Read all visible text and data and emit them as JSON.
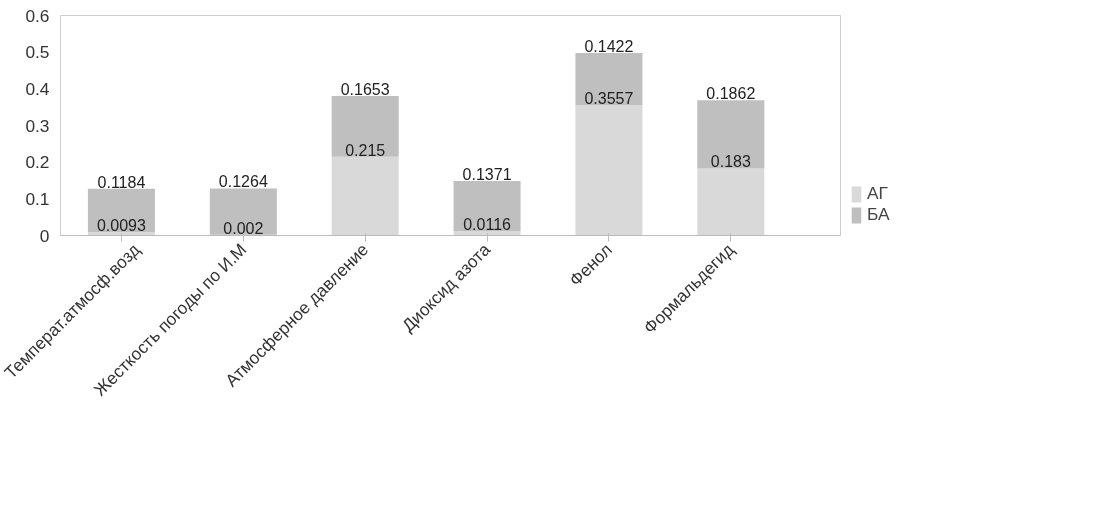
{
  "chart_data": {
    "type": "bar",
    "stacked": true,
    "data_labels": true,
    "legend": "right",
    "grid": false,
    "categories": [
      "Температ.атмосф.возд",
      "Жесткость погоды по И.М",
      "Атмосферное давление",
      "Диоксид азота",
      "Фенол",
      "Формальдегид"
    ],
    "ylim": [
      0,
      0.6
    ],
    "yticks": [
      0,
      0.1,
      0.2,
      0.3,
      0.4,
      0.5,
      0.6
    ],
    "series": [
      {
        "name": "АГ",
        "color": "#d9d9d9",
        "values": [
          0.0093,
          0.002,
          0.215,
          0.0116,
          0.3557,
          0.183
        ]
      },
      {
        "name": "БА",
        "color": "#bfbfbf",
        "values": [
          0.1184,
          0.1264,
          0.1653,
          0.1371,
          0.1422,
          0.1862
        ]
      }
    ]
  }
}
